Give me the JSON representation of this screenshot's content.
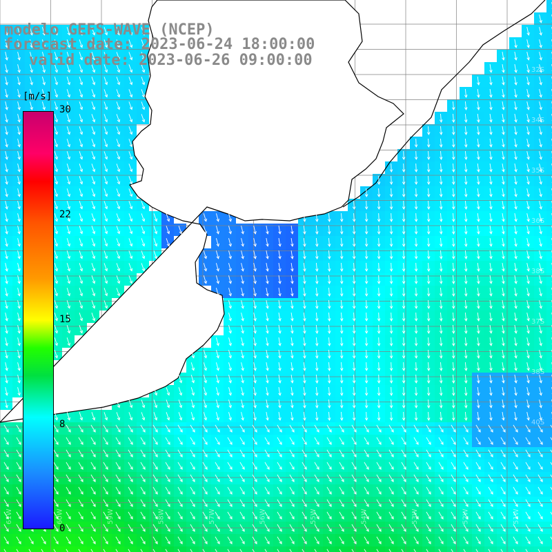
{
  "map": {
    "model_line": "modelo GEFS-WAVE (NCEP)",
    "forecast_line": "forecast date: 2023-06-24 18:00:00",
    "valid_line": "valid date: 2023-06-26 09:00:00",
    "field": "wind speed",
    "colors": {
      "land": "#ffffff",
      "coast": "#000000",
      "grid": "#808080",
      "arrows": "#ffffff",
      "title_text": "#8a8a8a"
    },
    "lat_labels": [
      "32S",
      "34S",
      "35S",
      "36S",
      "38S",
      "37S",
      "38S",
      "40S"
    ],
    "lon_labels": [
      "61W",
      "60W",
      "59W",
      "58W",
      "57W",
      "56W",
      "55W",
      "54W",
      "53W",
      "52W",
      "51W"
    ]
  },
  "colorbar": {
    "unit": "[m/s]",
    "ticks": [
      "30",
      "22",
      "15",
      "8",
      "0"
    ],
    "stops": [
      {
        "value": 0,
        "color": "#1a1aff"
      },
      {
        "value": 4,
        "color": "#1a8cff"
      },
      {
        "value": 8,
        "color": "#00ffff"
      },
      {
        "value": 11,
        "color": "#00e040"
      },
      {
        "value": 13,
        "color": "#22ff00"
      },
      {
        "value": 15,
        "color": "#ffff00"
      },
      {
        "value": 18,
        "color": "#ff9900"
      },
      {
        "value": 22,
        "color": "#ff5500"
      },
      {
        "value": 25,
        "color": "#ff0000"
      },
      {
        "value": 27,
        "color": "#ff0066"
      },
      {
        "value": 30,
        "color": "#c8006e"
      }
    ]
  }
}
